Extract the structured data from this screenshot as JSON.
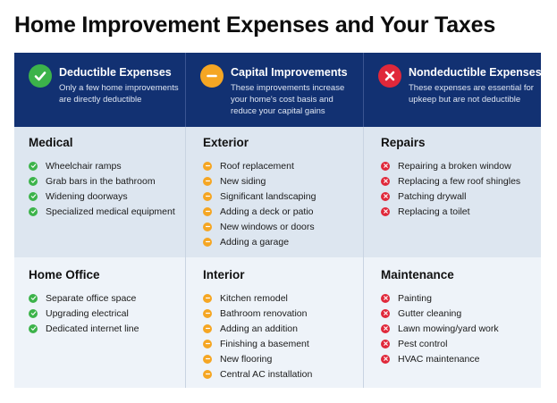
{
  "title": "Home Improvement Expenses and Your Taxes",
  "colors": {
    "header_bg": "#123172",
    "deductible": "#3cb34a",
    "capital": "#f5a623",
    "nondeductible": "#e0283a",
    "row_bg_top": "#dde6f0",
    "row_bg_bottom": "#eef3f9"
  },
  "columns": [
    {
      "key": "deductible",
      "icon": "check-icon",
      "title": "Deductible Expenses",
      "description": "Only a few home improvements are directly deductible"
    },
    {
      "key": "capital",
      "icon": "minus-icon",
      "title": "Capital Improvements",
      "description": "These improvements increase your home's cost basis and reduce your capital gains"
    },
    {
      "key": "nondeductible",
      "icon": "x-icon",
      "title": "Nondeductible Expenses",
      "description": "These expenses are essential for upkeep but are not deductible"
    }
  ],
  "rows": [
    [
      {
        "title": "Medical",
        "items": [
          "Wheelchair ramps",
          "Grab bars in the bathroom",
          "Widening doorways",
          "Specialized medical equipment"
        ]
      },
      {
        "title": "Exterior",
        "items": [
          "Roof replacement",
          "New siding",
          "Significant landscaping",
          "Adding a deck or patio",
          "New windows or doors",
          "Adding a garage"
        ]
      },
      {
        "title": "Repairs",
        "items": [
          "Repairing a broken window",
          "Replacing a few roof shingles",
          "Patching drywall",
          "Replacing a toilet"
        ]
      }
    ],
    [
      {
        "title": "Home Office",
        "items": [
          "Separate office space",
          "Upgrading electrical",
          "Dedicated internet line"
        ]
      },
      {
        "title": "Interior",
        "items": [
          "Kitchen remodel",
          "Bathroom renovation",
          "Adding an addition",
          "Finishing a basement",
          "New flooring",
          "Central AC installation"
        ]
      },
      {
        "title": "Maintenance",
        "items": [
          "Painting",
          "Gutter cleaning",
          "Lawn mowing/yard work",
          "Pest control",
          "HVAC maintenance"
        ]
      }
    ]
  ]
}
